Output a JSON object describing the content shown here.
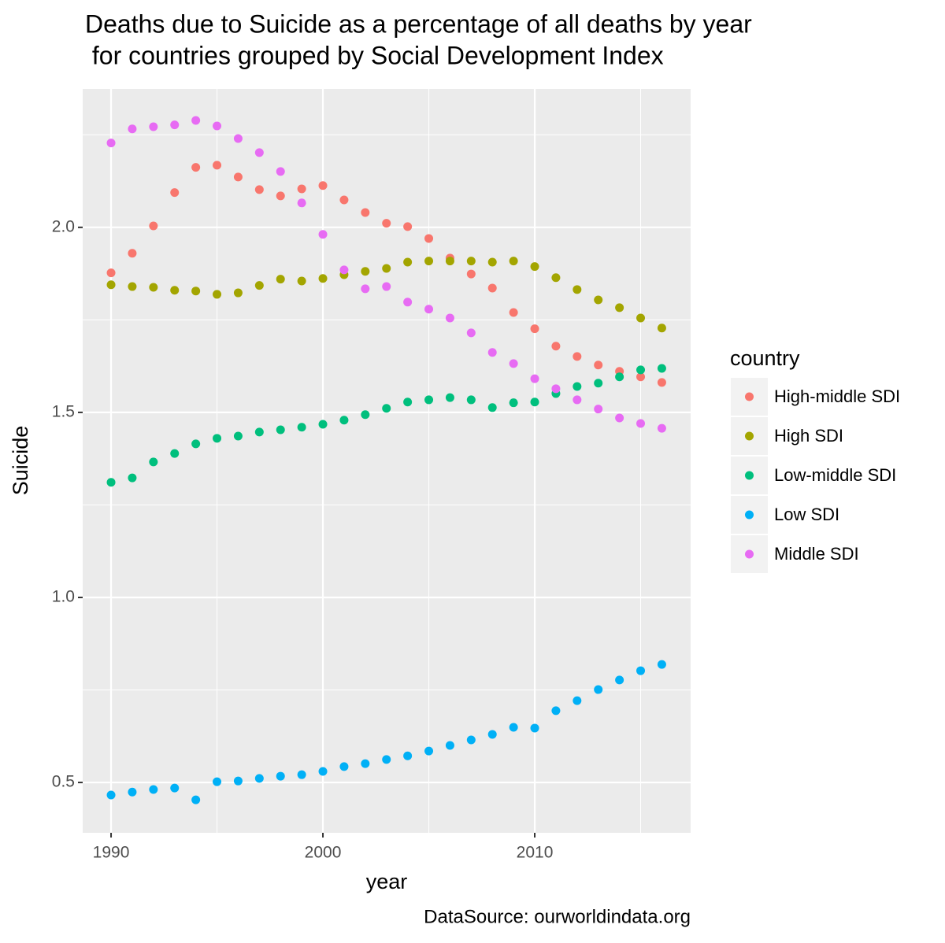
{
  "chart_data": {
    "type": "scatter",
    "title": [
      "Deaths due to Suicide as a percentage of all deaths by year",
      " for countries grouped by Social Development Index"
    ],
    "x_label": "year",
    "y_label": "Suicide",
    "caption": "DataSource: ourworldindata.org",
    "legend_title": "country",
    "x": [
      1990,
      1991,
      1992,
      1993,
      1994,
      1995,
      1996,
      1997,
      1998,
      1999,
      2000,
      2001,
      2002,
      2003,
      2004,
      2005,
      2006,
      2007,
      2008,
      2009,
      2010,
      2011,
      2012,
      2013,
      2014,
      2015,
      2016
    ],
    "series": [
      {
        "name": "High-middle SDI",
        "color": "#F8766D",
        "values": [
          1.877,
          1.93,
          2.004,
          2.094,
          2.162,
          2.168,
          2.136,
          2.102,
          2.085,
          2.104,
          2.113,
          2.074,
          2.04,
          2.011,
          2.002,
          1.97,
          1.917,
          1.874,
          1.836,
          1.77,
          1.726,
          1.679,
          1.651,
          1.628,
          1.611,
          1.596,
          1.581
        ]
      },
      {
        "name": "High SDI",
        "color": "#A3A500",
        "values": [
          1.845,
          1.84,
          1.838,
          1.83,
          1.828,
          1.819,
          1.823,
          1.843,
          1.86,
          1.855,
          1.862,
          1.872,
          1.881,
          1.889,
          1.906,
          1.909,
          1.909,
          1.909,
          1.906,
          1.909,
          1.894,
          1.864,
          1.832,
          1.804,
          1.783,
          1.755,
          1.728
        ]
      },
      {
        "name": "Low-middle SDI",
        "color": "#00BF7D",
        "values": [
          1.311,
          1.323,
          1.366,
          1.389,
          1.415,
          1.43,
          1.436,
          1.447,
          1.453,
          1.46,
          1.468,
          1.479,
          1.494,
          1.511,
          1.528,
          1.534,
          1.54,
          1.534,
          1.513,
          1.526,
          1.528,
          1.551,
          1.57,
          1.579,
          1.596,
          1.615,
          1.619
        ]
      },
      {
        "name": "Low SDI",
        "color": "#00B0F6",
        "values": [
          0.466,
          0.474,
          0.481,
          0.485,
          0.453,
          0.502,
          0.504,
          0.511,
          0.517,
          0.521,
          0.53,
          0.543,
          0.551,
          0.562,
          0.572,
          0.585,
          0.6,
          0.615,
          0.63,
          0.649,
          0.647,
          0.694,
          0.721,
          0.751,
          0.777,
          0.802,
          0.819
        ]
      },
      {
        "name": "Middle SDI",
        "color": "#E76BF3",
        "values": [
          2.228,
          2.266,
          2.272,
          2.277,
          2.289,
          2.274,
          2.24,
          2.202,
          2.151,
          2.066,
          1.981,
          1.885,
          1.834,
          1.84,
          1.798,
          1.779,
          1.755,
          1.715,
          1.662,
          1.632,
          1.591,
          1.564,
          1.534,
          1.509,
          1.485,
          1.47,
          1.457
        ]
      }
    ],
    "xlim": [
      1988.66,
      2017.36
    ],
    "ylim": [
      0.364,
      2.374
    ],
    "xticks": [
      1990,
      2000,
      2010
    ],
    "yticks": [
      0.5,
      {
        "value": 1,
        "label": "1.0"
      },
      1.5,
      {
        "value": 2,
        "label": "2.0"
      }
    ],
    "x_minor_grid": [
      1995,
      2005,
      2015
    ],
    "y_minor_grid": [
      0.75,
      1.25,
      1.75,
      2.25
    ],
    "grid": true
  }
}
